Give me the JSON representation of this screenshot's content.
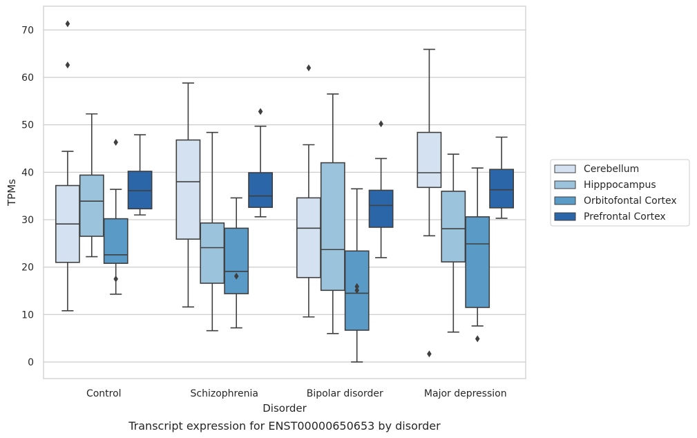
{
  "chart_data": {
    "type": "box",
    "title": "",
    "caption": "Transcript expression for ENST00000650653 by disorder",
    "xlabel": "Disorder",
    "ylabel": "TPMs",
    "ylim": [
      -3.5,
      75
    ],
    "yticks": [
      0,
      10,
      20,
      30,
      40,
      50,
      60,
      70
    ],
    "grid": "horizontal",
    "legend_position": "right",
    "categories": [
      "Control",
      "Schizophrenia",
      "Bipolar disorder",
      "Major depression"
    ],
    "series": [
      {
        "name": "Cerebellum",
        "color": "#d4e1f0",
        "boxes": [
          {
            "whislo": 10.8,
            "q1": 21.0,
            "med": 29.1,
            "q3": 37.2,
            "whishi": 44.4,
            "fliers": [
              71.3,
              62.6
            ]
          },
          {
            "whislo": 11.6,
            "q1": 25.9,
            "med": 38.0,
            "q3": 46.8,
            "whishi": 58.8,
            "fliers": []
          },
          {
            "whislo": 9.5,
            "q1": 17.8,
            "med": 28.2,
            "q3": 34.6,
            "whishi": 45.8,
            "fliers": [
              62.0
            ]
          },
          {
            "whislo": 26.6,
            "q1": 36.8,
            "med": 39.9,
            "q3": 48.4,
            "whishi": 65.9,
            "fliers": [
              1.7
            ]
          }
        ]
      },
      {
        "name": "Hipppocampus",
        "color": "#9cc3dc",
        "boxes": [
          {
            "whislo": 22.2,
            "q1": 26.5,
            "med": 33.9,
            "q3": 39.4,
            "whishi": 52.3,
            "fliers": []
          },
          {
            "whislo": 6.6,
            "q1": 16.6,
            "med": 24.1,
            "q3": 29.3,
            "whishi": 48.4,
            "fliers": []
          },
          {
            "whislo": 6.0,
            "q1": 15.1,
            "med": 23.7,
            "q3": 42.0,
            "whishi": 56.5,
            "fliers": []
          },
          {
            "whislo": 6.3,
            "q1": 21.1,
            "med": 28.1,
            "q3": 36.0,
            "whishi": 43.8,
            "fliers": []
          }
        ]
      },
      {
        "name": "Orbitofontal Cortex",
        "color": "#5a9ac7",
        "boxes": [
          {
            "whislo": 14.3,
            "q1": 20.8,
            "med": 22.6,
            "q3": 30.2,
            "whishi": 36.4,
            "fliers": [
              46.3,
              17.5
            ]
          },
          {
            "whislo": 7.2,
            "q1": 14.4,
            "med": 19.1,
            "q3": 28.2,
            "whishi": 34.6,
            "fliers": [
              18.1
            ]
          },
          {
            "whislo": 0.0,
            "q1": 6.7,
            "med": 14.5,
            "q3": 23.4,
            "whishi": 36.5,
            "fliers": [
              15.1,
              15.9
            ]
          },
          {
            "whislo": 7.6,
            "q1": 11.5,
            "med": 24.9,
            "q3": 30.6,
            "whishi": 40.9,
            "fliers": [
              4.9
            ]
          }
        ]
      },
      {
        "name": "Prefrontal Cortex",
        "color": "#2a66a8",
        "boxes": [
          {
            "whislo": 31.0,
            "q1": 32.3,
            "med": 36.1,
            "q3": 40.2,
            "whishi": 47.9,
            "fliers": []
          },
          {
            "whislo": 30.6,
            "q1": 32.6,
            "med": 35.0,
            "q3": 39.9,
            "whishi": 49.7,
            "fliers": [
              52.8
            ]
          },
          {
            "whislo": 22.0,
            "q1": 28.4,
            "med": 33.0,
            "q3": 36.2,
            "whishi": 42.9,
            "fliers": [
              50.2
            ]
          },
          {
            "whislo": 30.3,
            "q1": 32.5,
            "med": 36.3,
            "q3": 40.6,
            "whishi": 47.4,
            "fliers": []
          }
        ]
      }
    ]
  }
}
